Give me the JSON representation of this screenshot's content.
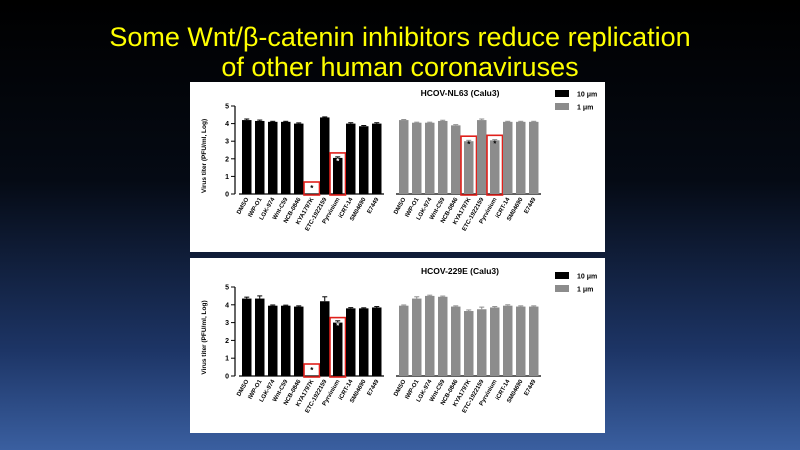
{
  "slide": {
    "title_line1": "Some Wnt/β-catenin inhibitors reduce replication",
    "title_line2": "of other human coronaviruses"
  },
  "colors": {
    "dose_10": "#000000",
    "dose_1": "#8c8c8c",
    "highlight_box": "#e0201b",
    "title_text": "#ffff00"
  },
  "chart_data": [
    {
      "type": "bar",
      "title": "HCOV-NL63 (Calu3)",
      "ylabel": "Virus titer (PFU/ml, Log)",
      "ylim": [
        0,
        5
      ],
      "yticks": [
        0,
        1,
        2,
        3,
        4,
        5
      ],
      "legend_position": "top-right",
      "categories": [
        "DMSO",
        "IWP-O1",
        "LGK-974",
        "Wnt-C59",
        "NCB-0846",
        "KYA1797K",
        "ETC-1922159",
        "Pyrvinium",
        "iCRT-14",
        "SM04690",
        "E7449"
      ],
      "series": [
        {
          "name": "10 μm",
          "color": "#000000",
          "values": [
            4.2,
            4.15,
            4.1,
            4.1,
            4.0,
            0.0,
            4.35,
            2.05,
            4.0,
            3.85,
            4.0
          ],
          "errors": [
            0.06,
            0.05,
            0.03,
            0.03,
            0.04,
            0,
            0.03,
            0.06,
            0.05,
            0.04,
            0.05
          ],
          "significant": [
            false,
            false,
            false,
            false,
            false,
            true,
            false,
            true,
            false,
            false,
            false
          ],
          "highlighted": [
            false,
            false,
            false,
            false,
            false,
            true,
            false,
            true,
            false,
            false,
            false
          ]
        },
        {
          "name": "1 μm",
          "color": "#8c8c8c",
          "values": [
            4.2,
            4.05,
            4.05,
            4.15,
            3.9,
            3.0,
            4.2,
            3.05,
            4.1,
            4.1,
            4.1
          ],
          "errors": [
            0.03,
            0.03,
            0.03,
            0.04,
            0.04,
            0.05,
            0.06,
            0.04,
            0.03,
            0.03,
            0.03
          ],
          "significant": [
            false,
            false,
            false,
            false,
            false,
            true,
            false,
            true,
            false,
            false,
            false
          ],
          "highlighted": [
            false,
            false,
            false,
            false,
            false,
            true,
            false,
            true,
            false,
            false,
            false
          ]
        }
      ]
    },
    {
      "type": "bar",
      "title": "HCOV-229E (Calu3)",
      "ylabel": "Virus titer (PFU/ml, Log)",
      "ylim": [
        0,
        5
      ],
      "yticks": [
        0,
        1,
        2,
        3,
        4,
        5
      ],
      "legend_position": "top-right",
      "categories": [
        "DMSO",
        "IWP-O1",
        "LGK-974",
        "Wnt-C59",
        "NCB-0846",
        "KYA1797K",
        "ETC-1922159",
        "Pyrvinium",
        "iCRT-14",
        "SM04690",
        "E7449"
      ],
      "series": [
        {
          "name": "10 μm",
          "color": "#000000",
          "values": [
            4.35,
            4.35,
            3.95,
            3.95,
            3.9,
            0.0,
            4.2,
            3.0,
            3.8,
            3.8,
            3.85
          ],
          "errors": [
            0.08,
            0.15,
            0.04,
            0.03,
            0.04,
            0,
            0.25,
            0.1,
            0.04,
            0.03,
            0.05
          ],
          "significant": [
            false,
            false,
            false,
            false,
            false,
            true,
            false,
            true,
            false,
            false,
            false
          ],
          "highlighted": [
            false,
            false,
            false,
            false,
            false,
            true,
            false,
            true,
            false,
            false,
            false
          ]
        },
        {
          "name": "1 μm",
          "color": "#8c8c8c",
          "values": [
            3.95,
            4.35,
            4.5,
            4.45,
            3.9,
            3.65,
            3.75,
            3.85,
            3.95,
            3.9,
            3.9
          ],
          "errors": [
            0.04,
            0.1,
            0.04,
            0.04,
            0.04,
            0.06,
            0.12,
            0.05,
            0.05,
            0.04,
            0.04
          ],
          "significant": [
            false,
            false,
            false,
            false,
            false,
            false,
            false,
            false,
            false,
            false,
            false
          ],
          "highlighted": [
            false,
            false,
            false,
            false,
            false,
            false,
            false,
            false,
            false,
            false,
            false
          ]
        }
      ]
    }
  ]
}
